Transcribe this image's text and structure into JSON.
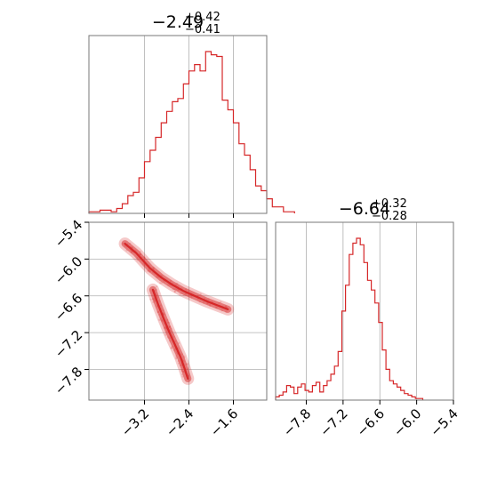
{
  "chart_data": [
    {
      "type": "histogram",
      "panel": "top-left",
      "title_main": "−2.49",
      "title_sup": "+0.42",
      "title_sub": "−0.41",
      "xlim": [
        -4.2,
        -1.0
      ],
      "x_ticks": [
        -3.2,
        -2.4,
        -1.6
      ],
      "x_tick_labels": [],
      "grid": true,
      "color": "#d62728",
      "bins_x_start": -4.2,
      "bin_width": 0.1,
      "counts": [
        1,
        1,
        2,
        2,
        1,
        3,
        6,
        11,
        13,
        22,
        32,
        39,
        47,
        56,
        63,
        69,
        71,
        80,
        88,
        92,
        88,
        100,
        98,
        97,
        70,
        64,
        56,
        43,
        36,
        27,
        17,
        14,
        9,
        4,
        4,
        1,
        1
      ]
    },
    {
      "type": "histogram",
      "panel": "bottom-right",
      "title_main": "−6.64",
      "title_sup": "+0.32",
      "title_sub": "−0.28",
      "xlim": [
        -8.3,
        -5.4
      ],
      "x_ticks": [
        -7.8,
        -7.2,
        -6.6,
        -6.0,
        -5.4
      ],
      "x_tick_labels": [
        "−7.8",
        "−7.2",
        "−6.6",
        "−6.0",
        "−5.4"
      ],
      "grid": true,
      "color": "#d62728",
      "bins_x_start": -8.3,
      "bin_width": 0.06,
      "counts": [
        2,
        3,
        5,
        9,
        8,
        4,
        8,
        10,
        6,
        5,
        9,
        11,
        5,
        9,
        12,
        16,
        21,
        30,
        55,
        71,
        90,
        97,
        100,
        96,
        85,
        74,
        68,
        60,
        48,
        31,
        19,
        12,
        10,
        8,
        6,
        4,
        3,
        2,
        1,
        1
      ]
    },
    {
      "type": "scatter",
      "panel": "bottom-left",
      "xlim": [
        -4.2,
        -1.0
      ],
      "ylim": [
        -8.3,
        -5.4
      ],
      "x_ticks": [
        -3.2,
        -2.4,
        -1.6
      ],
      "x_tick_labels": [
        "−3.2",
        "−2.4",
        "−1.6"
      ],
      "y_ticks": [
        -5.4,
        -6.0,
        -6.6,
        -7.2,
        -7.8
      ],
      "y_tick_labels": [
        "−5.4",
        "−6.0",
        "−6.6",
        "−7.2",
        "−7.8"
      ],
      "grid": true,
      "color": "#d62728",
      "branches": [
        {
          "x": [
            -3.55,
            -3.35,
            -3.1,
            -2.9,
            -2.7,
            -2.5,
            -2.3,
            -2.1,
            -1.9,
            -1.7
          ],
          "y": [
            -5.75,
            -5.9,
            -6.15,
            -6.3,
            -6.42,
            -6.52,
            -6.6,
            -6.68,
            -6.75,
            -6.82
          ]
        },
        {
          "x": [
            -3.05,
            -2.95,
            -2.85,
            -2.75,
            -2.65,
            -2.55,
            -2.48,
            -2.42
          ],
          "y": [
            -6.5,
            -6.75,
            -6.98,
            -7.2,
            -7.4,
            -7.6,
            -7.78,
            -7.95
          ]
        }
      ]
    }
  ]
}
